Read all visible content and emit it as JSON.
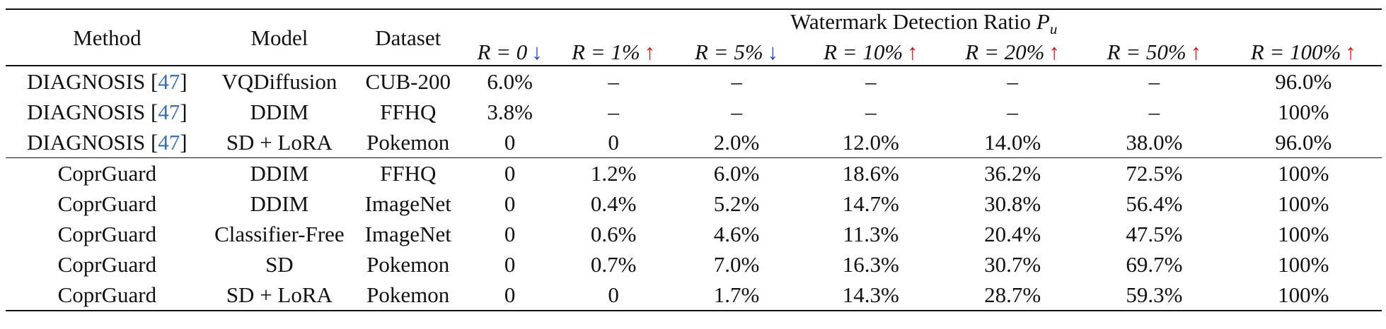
{
  "table": {
    "header": {
      "method": "Method",
      "model": "Model",
      "dataset": "Dataset",
      "group_title": "Watermark Detection Ratio",
      "group_symbol": "P",
      "group_subscript": "u",
      "ratios": [
        {
          "label": "R = 0",
          "arrow": "↓",
          "arrow_color": "#1a3ee8"
        },
        {
          "label": "R = 1%",
          "arrow": "↑",
          "arrow_color": "#e01010"
        },
        {
          "label": "R = 5%",
          "arrow": "↓",
          "arrow_color": "#1a3ee8"
        },
        {
          "label": "R = 10%",
          "arrow": "↑",
          "arrow_color": "#e01010"
        },
        {
          "label": "R = 20%",
          "arrow": "↑",
          "arrow_color": "#e01010"
        },
        {
          "label": "R = 50%",
          "arrow": "↑",
          "arrow_color": "#e01010"
        },
        {
          "label": "R = 100%",
          "arrow": "↑",
          "arrow_color": "#e01010"
        }
      ]
    },
    "rows": [
      {
        "method": "DIAGNOSIS",
        "cite": "47",
        "model": "VQDiffusion",
        "dataset": "CUB-200",
        "values": [
          "6.0%",
          "–",
          "–",
          "–",
          "–",
          "–",
          "96.0%"
        ]
      },
      {
        "method": "DIAGNOSIS",
        "cite": "47",
        "model": "DDIM",
        "dataset": "FFHQ",
        "values": [
          "3.8%",
          "–",
          "–",
          "–",
          "–",
          "–",
          "100%"
        ]
      },
      {
        "method": "DIAGNOSIS",
        "cite": "47",
        "model": "SD + LoRA",
        "dataset": "Pokemon",
        "values": [
          "0",
          "0",
          "2.0%",
          "12.0%",
          "14.0%",
          "38.0%",
          "96.0%"
        ]
      },
      {
        "method": "CoprGuard",
        "cite": "",
        "model": "DDIM",
        "dataset": "FFHQ",
        "values": [
          "0",
          "1.2%",
          "6.0%",
          "18.6%",
          "36.2%",
          "72.5%",
          "100%"
        ]
      },
      {
        "method": "CoprGuard",
        "cite": "",
        "model": "DDIM",
        "dataset": "ImageNet",
        "values": [
          "0",
          "0.4%",
          "5.2%",
          "14.7%",
          "30.8%",
          "56.4%",
          "100%"
        ]
      },
      {
        "method": "CoprGuard",
        "cite": "",
        "model": "Classifier-Free",
        "dataset": "ImageNet",
        "values": [
          "0",
          "0.6%",
          "4.6%",
          "11.3%",
          "20.4%",
          "47.5%",
          "100%"
        ]
      },
      {
        "method": "CoprGuard",
        "cite": "",
        "model": "SD",
        "dataset": "Pokemon",
        "values": [
          "0",
          "0.7%",
          "7.0%",
          "16.3%",
          "30.7%",
          "69.7%",
          "100%"
        ]
      },
      {
        "method": "CoprGuard",
        "cite": "",
        "model": "SD + LoRA",
        "dataset": "Pokemon",
        "values": [
          "0",
          "0",
          "1.7%",
          "14.3%",
          "28.7%",
          "59.3%",
          "100%"
        ]
      }
    ]
  }
}
